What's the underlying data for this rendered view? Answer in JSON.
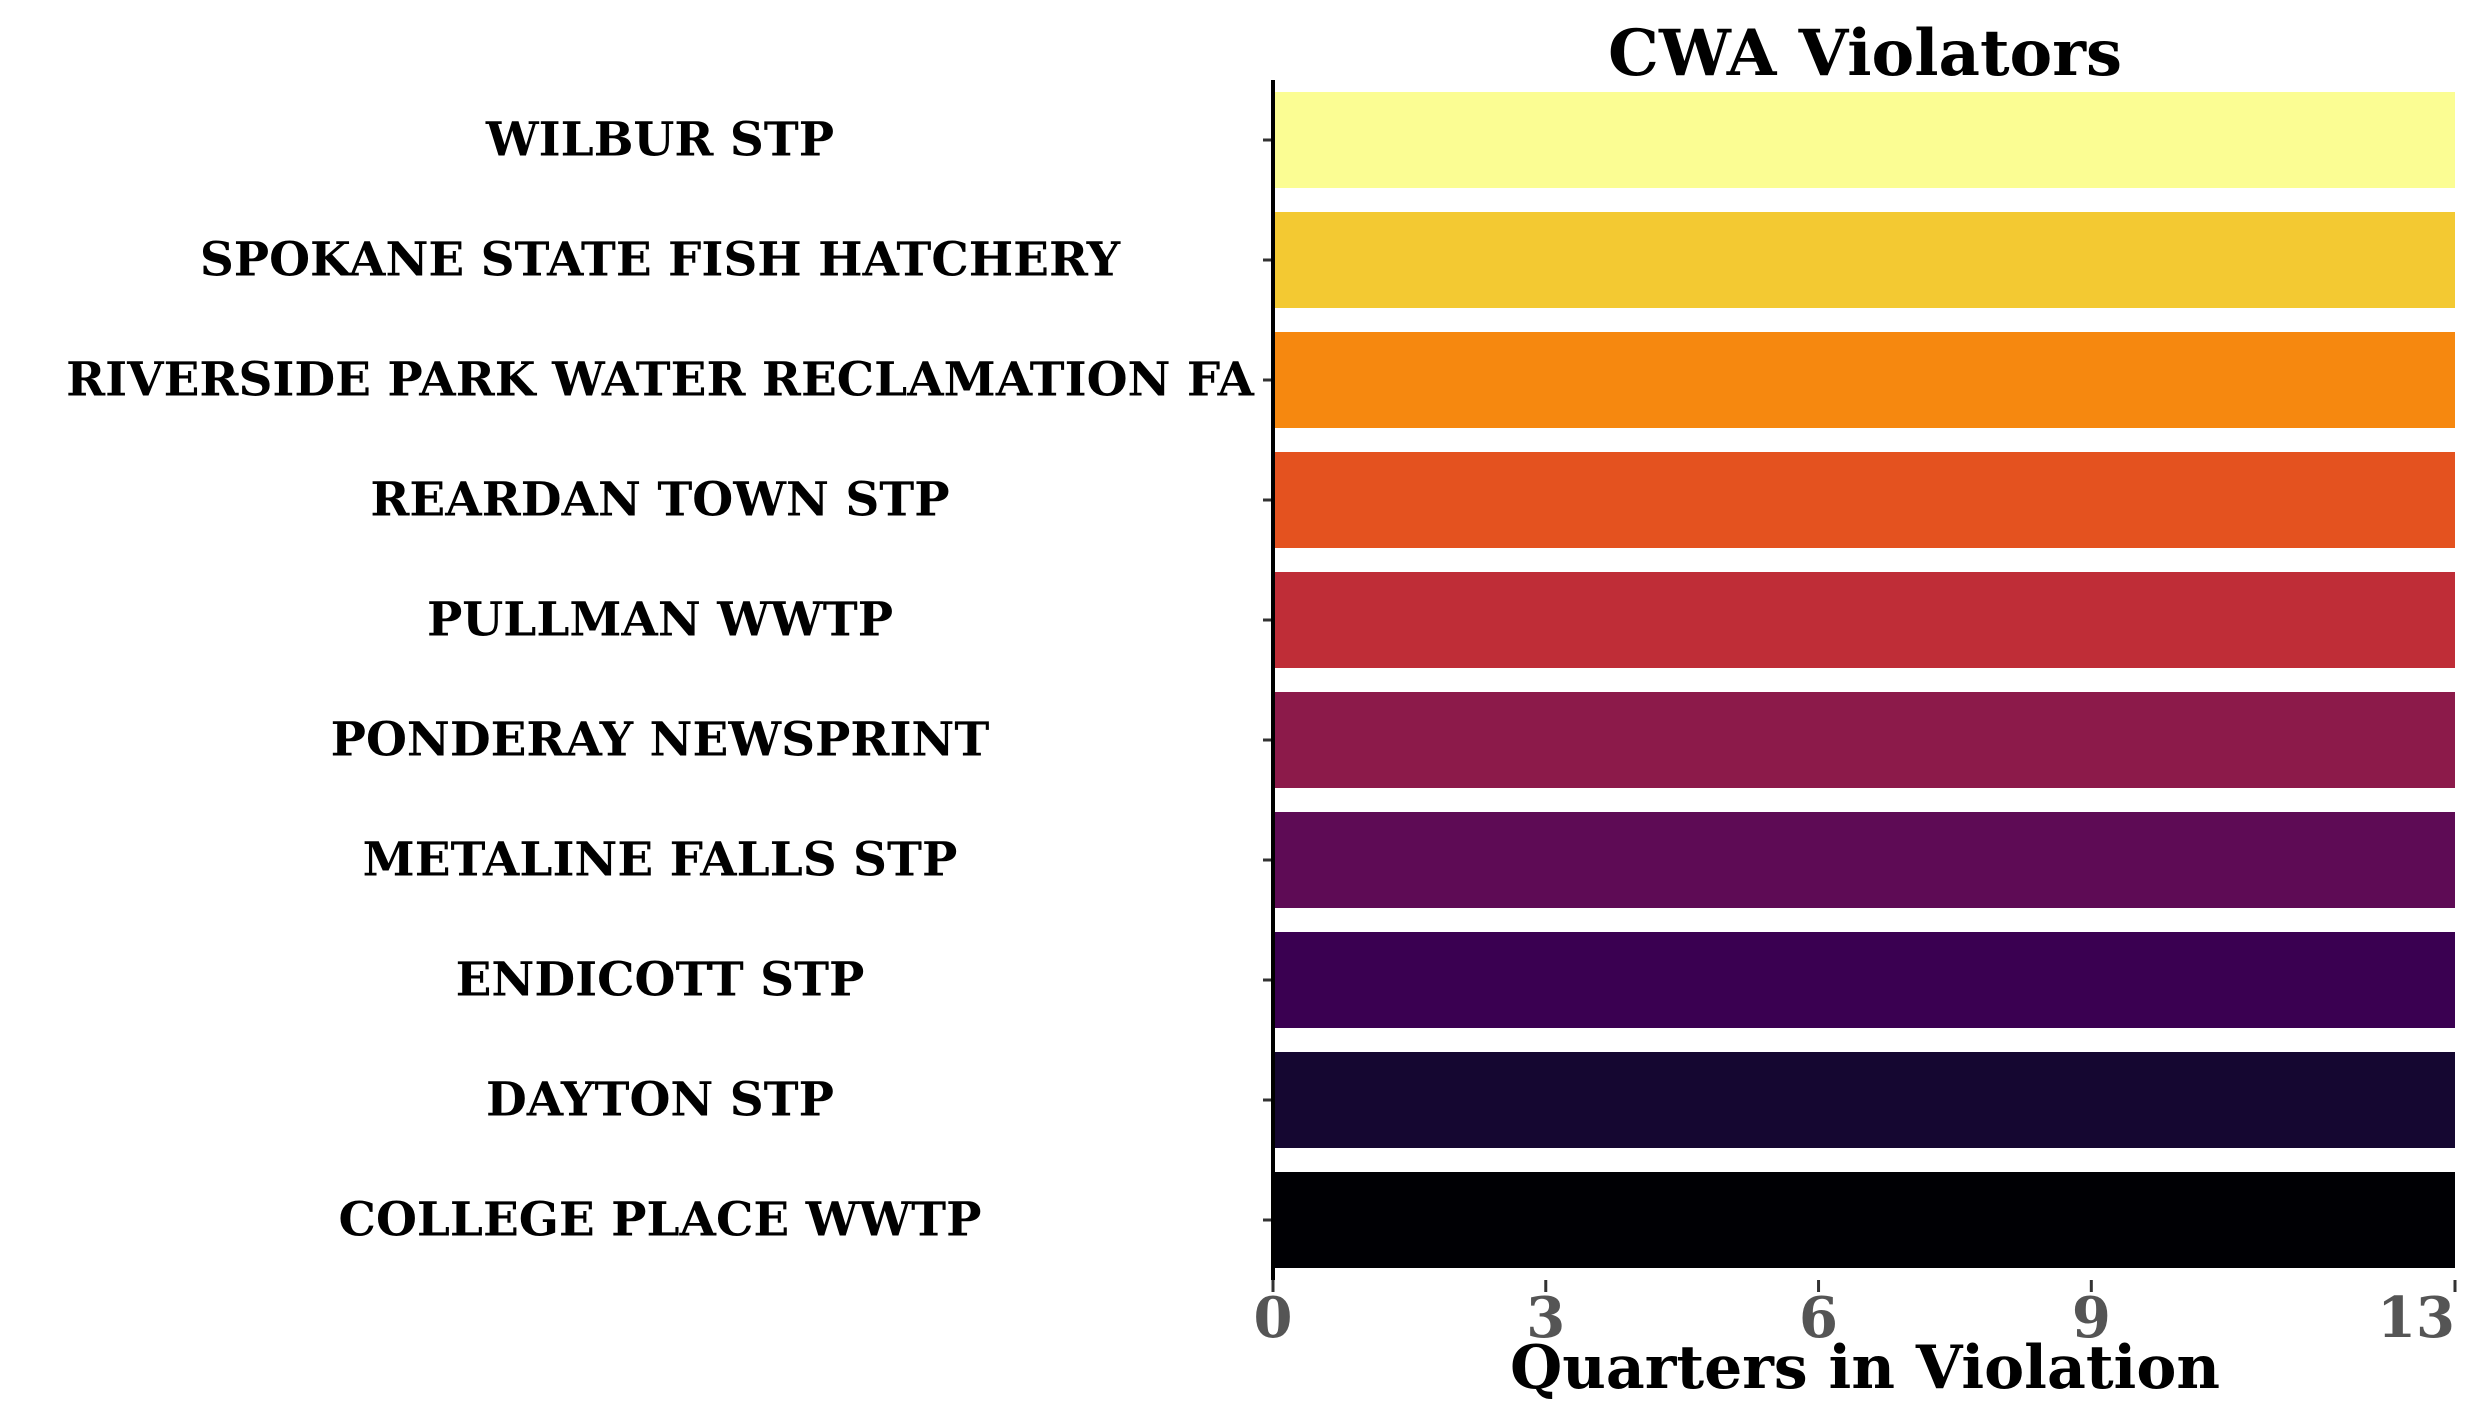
{
  "chart_data": {
    "type": "bar",
    "orientation": "horizontal",
    "title": "CWA Violators",
    "xlabel": "Quarters in Violation",
    "ylabel": "",
    "xlim": [
      0,
      13
    ],
    "xticks": [
      "0",
      "3",
      "6",
      "9",
      "13"
    ],
    "xtick_values": [
      0,
      3,
      6,
      9,
      13
    ],
    "categories": [
      "WILBUR STP",
      "SPOKANE STATE FISH HATCHERY",
      "RIVERSIDE PARK WATER RECLAMATION FA",
      "REARDAN TOWN STP",
      "PULLMAN WWTP",
      "PONDERAY NEWSPRINT",
      "METALINE FALLS STP",
      "ENDICOTT STP",
      "DAYTON STP",
      "COLLEGE PLACE WWTP"
    ],
    "values": [
      13,
      13,
      13,
      13,
      13,
      13,
      13,
      13,
      13,
      13
    ],
    "colors": [
      "#fbfd93",
      "#f3c932",
      "#f6880f",
      "#e4521f",
      "#bf2d37",
      "#8c1a4a",
      "#5e0b55",
      "#3a0051",
      "#150731",
      "#000004"
    ],
    "grid": false,
    "legend": "none"
  }
}
